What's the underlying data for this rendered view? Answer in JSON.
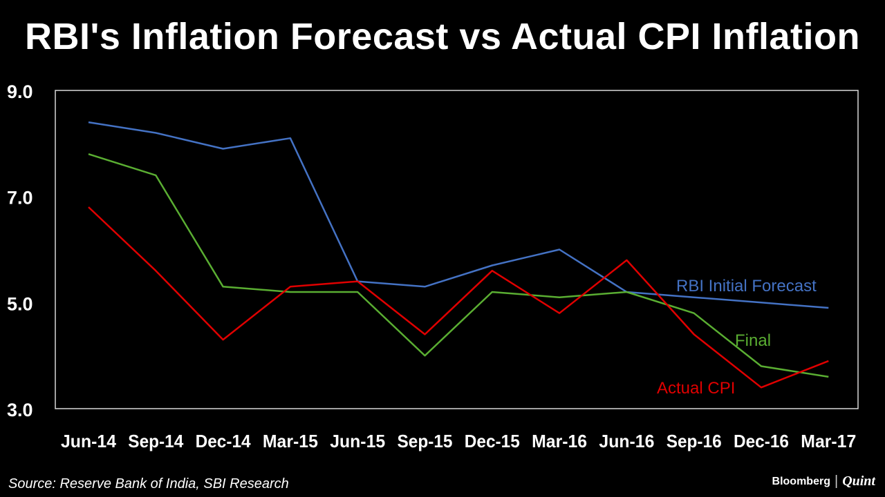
{
  "title": "RBI's Inflation Forecast vs Actual CPI Inflation",
  "source": "Source: Reserve Bank of India, SBI Research",
  "brand": {
    "name": "Bloomberg",
    "separator": "|",
    "partner": "Quint"
  },
  "chart_data": {
    "type": "line",
    "title": "RBI's Inflation Forecast vs Actual CPI Inflation",
    "xlabel": "",
    "ylabel": "",
    "categories": [
      "Jun-14",
      "Sep-14",
      "Dec-14",
      "Mar-15",
      "Jun-15",
      "Sep-15",
      "Dec-15",
      "Mar-16",
      "Jun-16",
      "Sep-16",
      "Dec-16",
      "Mar-17"
    ],
    "ylim": [
      3.0,
      9.0
    ],
    "yticks": [
      "9.0",
      "7.0",
      "5.0",
      "3.0"
    ],
    "ytick_values": [
      9,
      7,
      5,
      3
    ],
    "series": [
      {
        "name": "RBI Initial Forecast",
        "color": "#4472C4",
        "values": [
          8.4,
          8.2,
          7.9,
          8.1,
          5.4,
          5.3,
          5.7,
          6.0,
          5.2,
          5.1,
          5.0,
          4.9
        ]
      },
      {
        "name": "Final",
        "color": "#5AAE32",
        "values": [
          7.8,
          7.4,
          5.3,
          5.2,
          5.2,
          4.0,
          5.2,
          5.1,
          5.2,
          4.8,
          3.8,
          3.6
        ]
      },
      {
        "name": "Actual CPI",
        "color": "#E00000",
        "values": [
          6.8,
          5.6,
          4.3,
          5.3,
          5.4,
          4.4,
          5.6,
          4.8,
          5.8,
          4.4,
          3.4,
          3.9
        ]
      }
    ]
  }
}
